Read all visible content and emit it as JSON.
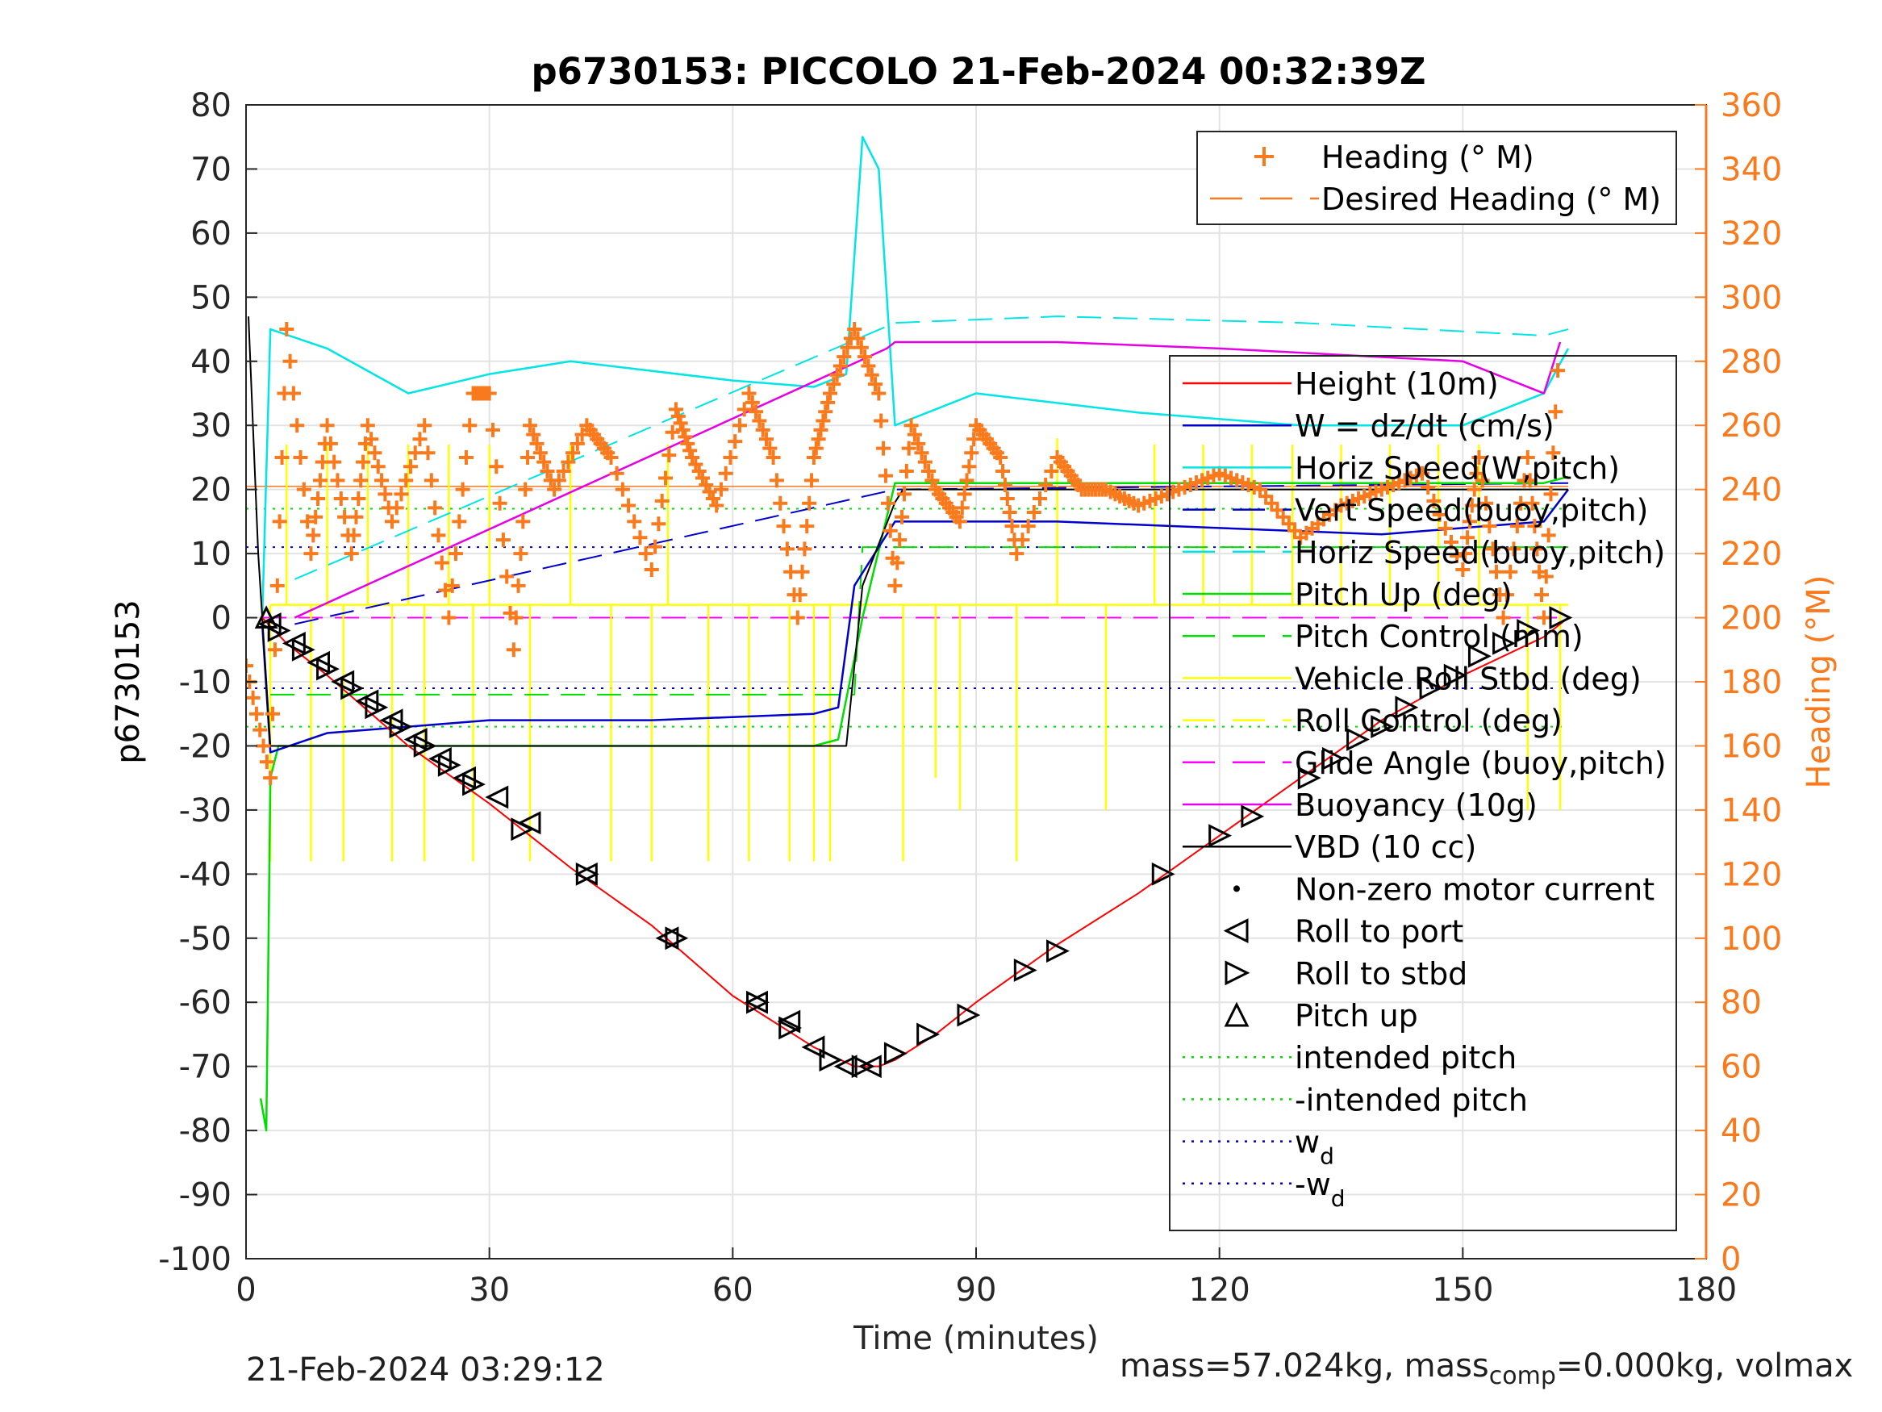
{
  "chart_data": {
    "type": "line",
    "title": "p6730153: PICCOLO 21-Feb-2024 00:32:39Z",
    "xlabel": "Time (minutes)",
    "ylabel": "p6730153",
    "ylabel_right": "Heading (°M)",
    "xlim": [
      0,
      180
    ],
    "ylim": [
      -100,
      80
    ],
    "ylim_right": [
      0,
      360
    ],
    "x_ticks": [
      "0",
      "30",
      "60",
      "90",
      "120",
      "150",
      "180"
    ],
    "y_ticks": [
      "-100",
      "-90",
      "-80",
      "-70",
      "-60",
      "-50",
      "-40",
      "-30",
      "-20",
      "-10",
      "0",
      "10",
      "20",
      "30",
      "40",
      "50",
      "60",
      "70",
      "80"
    ],
    "y_ticks_right": [
      "0",
      "20",
      "40",
      "60",
      "80",
      "100",
      "120",
      "140",
      "160",
      "180",
      "200",
      "220",
      "240",
      "260",
      "280",
      "300",
      "320",
      "340",
      "360"
    ],
    "grid": true,
    "colors": {
      "height": "#ff0000",
      "w": "#0000cc",
      "horiz_speed": "#00e5e5",
      "pitch": "#00dd00",
      "roll": "#ffff00",
      "glide": "#ff00ff",
      "buoyancy": "#e600e6",
      "vbd": "#000000",
      "heading": "#f97a1d",
      "axis_right": "#f97a1d"
    },
    "legend_heading": [
      {
        "label": "Heading (° M)",
        "style": "plus",
        "color": "#f97a1d"
      },
      {
        "label": "Desired Heading (° M)",
        "style": "dash",
        "color": "#f97a1d"
      }
    ],
    "legend_main": [
      {
        "label": "Height (10m)",
        "style": "solid",
        "color": "#ff0000"
      },
      {
        "label": "W = dz/dt (cm/s)",
        "style": "solid",
        "color": "#0000cc"
      },
      {
        "label": "Horiz Speed(W,pitch)",
        "style": "solid",
        "color": "#00e5e5"
      },
      {
        "label": "Vert Speed(buoy,pitch)",
        "style": "dash",
        "color": "#0000cc"
      },
      {
        "label": "Horiz Speed(buoy,pitch)",
        "style": "dash",
        "color": "#00e5e5"
      },
      {
        "label": "Pitch Up (deg)",
        "style": "solid",
        "color": "#00dd00"
      },
      {
        "label": "Pitch Control (mm)",
        "style": "dash",
        "color": "#00dd00"
      },
      {
        "label": "Vehicle Roll Stbd (deg)",
        "style": "solid",
        "color": "#ffff00"
      },
      {
        "label": "Roll Control (deg)",
        "style": "dash",
        "color": "#ffff00"
      },
      {
        "label": "Glide Angle (buoy,pitch)",
        "style": "dash",
        "color": "#ff00ff"
      },
      {
        "label": "Buoyancy (10g)",
        "style": "solid",
        "color": "#e600e6"
      },
      {
        "label": "VBD (10 cc)",
        "style": "solid",
        "color": "#000000"
      },
      {
        "label": "Non-zero motor current",
        "style": "dot",
        "color": "#000000"
      },
      {
        "label": "Roll to port",
        "style": "tri-left",
        "color": "#000000"
      },
      {
        "label": "Roll to stbd",
        "style": "tri-right",
        "color": "#000000"
      },
      {
        "label": "Pitch up",
        "style": "tri-up",
        "color": "#000000"
      },
      {
        "label": "intended pitch",
        "style": "dotted",
        "color": "#00dd00"
      },
      {
        "label": "-intended pitch",
        "style": "dotted",
        "color": "#00dd00"
      },
      {
        "label": "w",
        "sub": "d",
        "style": "dotted",
        "color": "#0000cc"
      },
      {
        "label": "-w",
        "sub": "d",
        "style": "dotted",
        "color": "#0000cc"
      }
    ],
    "series": {
      "height": {
        "x": [
          2,
          5,
          10,
          20,
          30,
          40,
          50,
          60,
          70,
          75,
          78,
          80,
          85,
          90,
          100,
          110,
          120,
          130,
          140,
          150,
          160,
          163
        ],
        "y": [
          0,
          -4,
          -9,
          -20,
          -29,
          -39,
          -48,
          -59,
          -67,
          -70,
          -70,
          -69,
          -65,
          -60,
          -51,
          -43,
          -34,
          -25,
          -16,
          -9,
          -3,
          0
        ]
      },
      "vbd": {
        "x": [
          0.3,
          1.5,
          3,
          10,
          40,
          70,
          74,
          76,
          80,
          81,
          100,
          125,
          160,
          163
        ],
        "y": [
          47,
          10,
          -20,
          -20,
          -20,
          -20,
          -20,
          5,
          18,
          20,
          20,
          20,
          20,
          20
        ]
      },
      "buoyancy": {
        "x": [
          6,
          79,
          80,
          100,
          120,
          150,
          160,
          162
        ],
        "y": [
          0,
          42,
          43,
          43,
          42,
          40,
          35,
          43
        ]
      },
      "glide": {
        "x": [
          2,
          163
        ],
        "y": [
          0,
          0
        ]
      },
      "w": {
        "x": [
          2,
          3,
          10,
          30,
          50,
          70,
          73,
          75,
          80,
          100,
          120,
          140,
          160,
          163
        ],
        "y": [
          -1,
          -21,
          -18,
          -16,
          -16,
          -15,
          -14,
          5,
          15,
          15,
          14,
          13,
          15,
          20
        ]
      },
      "vert_speed_buoy": {
        "x": [
          6,
          80,
          163
        ],
        "y": [
          -1,
          20,
          21
        ]
      },
      "horiz_speed_w": {
        "x": [
          2,
          3,
          10,
          20,
          30,
          40,
          60,
          70,
          74,
          76,
          78,
          80,
          90,
          110,
          130,
          150,
          160,
          163
        ],
        "y": [
          0,
          45,
          42,
          35,
          38,
          40,
          37,
          36,
          38,
          75,
          70,
          30,
          35,
          32,
          30,
          30,
          35,
          42
        ]
      },
      "horiz_speed_buoy": {
        "x": [
          6,
          80,
          100,
          130,
          160,
          163
        ],
        "y": [
          6,
          46,
          47,
          46,
          44,
          45
        ]
      },
      "pitch_up": {
        "x": [
          1.8,
          2.5,
          3,
          4,
          10,
          40,
          70,
          73,
          76,
          80,
          100,
          130,
          160,
          163
        ],
        "y": [
          -75,
          -80,
          -25,
          -20,
          -20,
          -20,
          -20,
          -19,
          0,
          21,
          21,
          21,
          21,
          22
        ]
      },
      "pitch_control": {
        "x": [
          3,
          75,
          76,
          163
        ],
        "y": [
          -12,
          -12,
          11,
          11
        ]
      },
      "heading": {
        "x": [
          0,
          3,
          5,
          8,
          10,
          13,
          15,
          18,
          22,
          25,
          28,
          30,
          33,
          35,
          38,
          42,
          45,
          50,
          53,
          55,
          58,
          62,
          65,
          68,
          70,
          72,
          75,
          78,
          80,
          82,
          85,
          88,
          90,
          93,
          95,
          100,
          103,
          106,
          110,
          115,
          120,
          125,
          130,
          135,
          140,
          145,
          150,
          152,
          155,
          158,
          160,
          162
        ],
        "y": [
          185,
          150,
          290,
          220,
          260,
          220,
          260,
          230,
          260,
          200,
          270,
          270,
          190,
          260,
          240,
          260,
          250,
          215,
          265,
          250,
          235,
          270,
          250,
          200,
          250,
          270,
          290,
          270,
          210,
          260,
          240,
          230,
          260,
          250,
          220,
          250,
          240,
          240,
          235,
          240,
          245,
          240,
          225,
          235,
          240,
          245,
          215,
          250,
          200,
          250,
          200,
          290
        ]
      },
      "desired_heading": {
        "x": [
          0,
          163
        ],
        "y": [
          241,
          241
        ]
      },
      "intended_pitch": {
        "x": [
          0,
          163
        ],
        "y": [
          17,
          17
        ]
      },
      "neg_intended_pitch": {
        "x": [
          0,
          163
        ],
        "y": [
          -17,
          -17
        ]
      },
      "wd": {
        "x": [
          0,
          163
        ],
        "y": [
          11,
          11
        ]
      },
      "neg_wd": {
        "x": [
          0,
          163
        ],
        "y": [
          -11,
          -11
        ]
      },
      "roll_spikes_x": [
        3,
        5,
        8,
        10,
        12,
        15,
        18,
        20,
        22,
        25,
        28,
        30,
        35,
        40,
        45,
        50,
        52,
        57,
        62,
        67,
        70,
        72,
        81,
        85,
        88,
        95,
        100,
        106,
        112,
        118,
        124,
        129,
        135,
        141,
        147,
        152,
        158,
        162
      ],
      "roll_spikes_y": [
        -38,
        27,
        -38,
        27,
        -38,
        27,
        -38,
        27,
        -38,
        27,
        -38,
        27,
        -38,
        27,
        -38,
        -38,
        27,
        -38,
        -38,
        -38,
        -38,
        -38,
        -38,
        -25,
        -30,
        -38,
        28,
        -30,
        27,
        27,
        27,
        27,
        27,
        27,
        27,
        27,
        -30,
        -30
      ],
      "pitch_up_markers_x": [
        2.5
      ],
      "pitch_up_markers_y": [
        0
      ],
      "roll_port_markers_x": [
        3,
        6,
        9,
        12,
        15,
        18,
        21,
        24,
        27,
        31,
        35,
        42,
        52,
        63,
        67,
        70,
        74,
        77
      ],
      "roll_port_markers_y": [
        -1,
        -4,
        -7,
        -10,
        -13,
        -16,
        -19,
        -22,
        -25,
        -28,
        -32,
        -40,
        -50,
        -60,
        -63,
        -67,
        -70,
        -70
      ],
      "roll_stbd_markers_x": [
        4,
        7,
        10,
        13,
        16,
        19,
        22,
        25,
        28,
        34,
        42,
        53,
        63,
        67,
        72,
        76,
        80,
        84,
        89,
        96,
        100,
        113,
        120,
        124,
        131,
        134,
        137,
        140,
        143,
        146,
        149,
        152,
        155,
        158,
        162
      ],
      "roll_stbd_markers_y": [
        -2,
        -5,
        -8,
        -11,
        -14,
        -17,
        -20,
        -23,
        -26,
        -33,
        -40,
        -50,
        -60,
        -64,
        -69,
        -70,
        -68,
        -65,
        -62,
        -55,
        -52,
        -40,
        -34,
        -31,
        -25,
        -22,
        -19,
        -17,
        -14,
        -11,
        -9,
        -6,
        -4,
        -2,
        0
      ]
    }
  },
  "footer": {
    "date": "21-Feb-2024 03:29:12",
    "mass_text": "mass=57.024kg, mass",
    "mass_sub": "comp",
    "mass_tail": "=0.000kg, volmax"
  }
}
